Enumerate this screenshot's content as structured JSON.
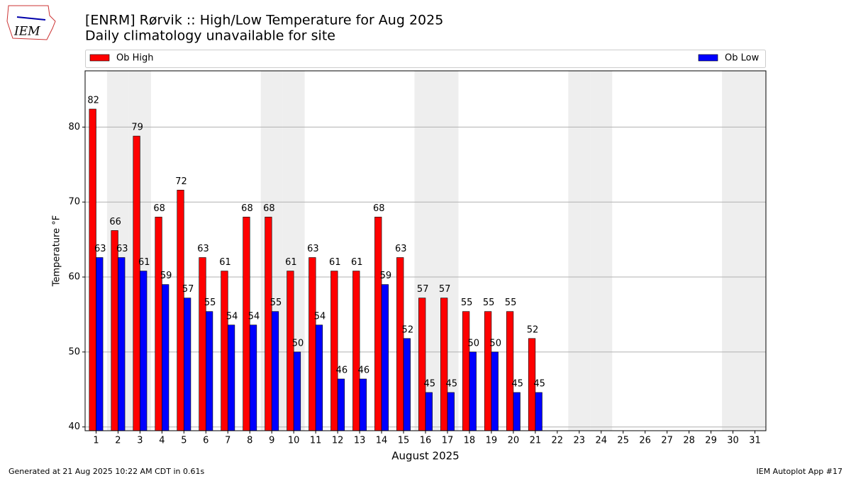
{
  "chart_data": {
    "type": "bar",
    "logo": "IEM",
    "title": "[ENRM] Rørvik :: High/Low Temperature for Aug 2025",
    "subtitle": "Daily climatology unavailable for site",
    "xlabel": "August 2025",
    "ylabel": "Temperature °F",
    "footer_left": "Generated at 21 Aug 2025 10:22 AM CDT in 0.61s",
    "footer_right": "IEM Autoplot App #17",
    "categories": [
      "1",
      "2",
      "3",
      "4",
      "5",
      "6",
      "7",
      "8",
      "9",
      "10",
      "11",
      "12",
      "13",
      "14",
      "15",
      "16",
      "17",
      "18",
      "19",
      "20",
      "21",
      "22",
      "23",
      "24",
      "25",
      "26",
      "27",
      "28",
      "29",
      "30",
      "31"
    ],
    "series": [
      {
        "name": "Ob High",
        "color": "#ff0000",
        "values": [
          82.4,
          66.2,
          78.8,
          68,
          71.6,
          62.6,
          60.8,
          68,
          68,
          60.8,
          62.6,
          60.8,
          60.8,
          68,
          62.6,
          57.2,
          57.2,
          55.4,
          55.4,
          55.4,
          51.8,
          null,
          null,
          null,
          null,
          null,
          null,
          null,
          null,
          null,
          null
        ],
        "value_labels": [
          "82",
          "66",
          "79",
          "68",
          "72",
          "63",
          "61",
          "68",
          "68",
          "61",
          "63",
          "61",
          "61",
          "68",
          "63",
          "57",
          "57",
          "55",
          "55",
          "55",
          "52",
          null,
          null,
          null,
          null,
          null,
          null,
          null,
          null,
          null,
          null
        ]
      },
      {
        "name": "Ob Low",
        "color": "#0000ff",
        "values": [
          62.6,
          62.6,
          60.8,
          59,
          57.2,
          55.4,
          53.6,
          53.6,
          55.4,
          50,
          53.6,
          46.4,
          46.4,
          59,
          51.8,
          44.6,
          44.6,
          50,
          50,
          44.6,
          44.6,
          null,
          null,
          null,
          null,
          null,
          null,
          null,
          null,
          null,
          null
        ],
        "value_labels": [
          "63",
          "63",
          "61",
          "59",
          "57",
          "55",
          "54",
          "54",
          "55",
          "50",
          "54",
          "46",
          "46",
          "59",
          "52",
          "45",
          "45",
          "50",
          "50",
          "45",
          "45",
          null,
          null,
          null,
          null,
          null,
          null,
          null,
          null,
          null,
          null
        ]
      }
    ],
    "ylim": [
      39.5,
      87.5
    ],
    "yticks": [
      40,
      50,
      60,
      70,
      80
    ],
    "grid": true
  }
}
